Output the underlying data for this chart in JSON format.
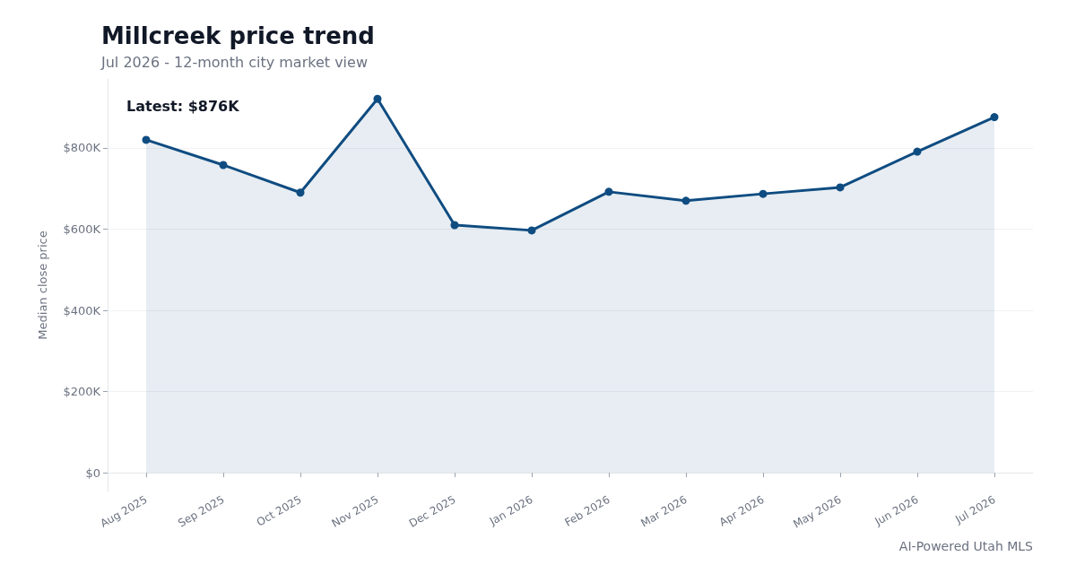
{
  "chart_data": {
    "type": "area",
    "title": "Millcreek price trend",
    "subtitle": "Jul 2026 - 12-month city market view",
    "ylabel": "Median close price",
    "categories": [
      "Aug 2025",
      "Sep 2025",
      "Oct 2025",
      "Nov 2025",
      "Dec 2025",
      "Jan 2026",
      "Feb 2026",
      "Mar 2026",
      "Apr 2026",
      "May 2026",
      "Jun 2026",
      "Jul 2026"
    ],
    "series": [
      {
        "color": "#0f4c81",
        "values": [
          820000,
          758000,
          690000,
          921000,
          610000,
          597000,
          692000,
          670000,
          687000,
          703000,
          791000,
          876000
        ]
      }
    ],
    "ylim": [
      -46000,
      970000
    ],
    "yticks": [
      {
        "value": 0,
        "label": "$0"
      },
      {
        "value": 200000,
        "label": "$200K"
      },
      {
        "value": 400000,
        "label": "$400K"
      },
      {
        "value": 600000,
        "label": "$600K"
      },
      {
        "value": 800000,
        "label": "$800K"
      }
    ],
    "grid": "y",
    "marker": "circle",
    "line_style": "solid",
    "annotations": [
      "Latest: $876K",
      "AI-Powered Utah MLS"
    ]
  }
}
